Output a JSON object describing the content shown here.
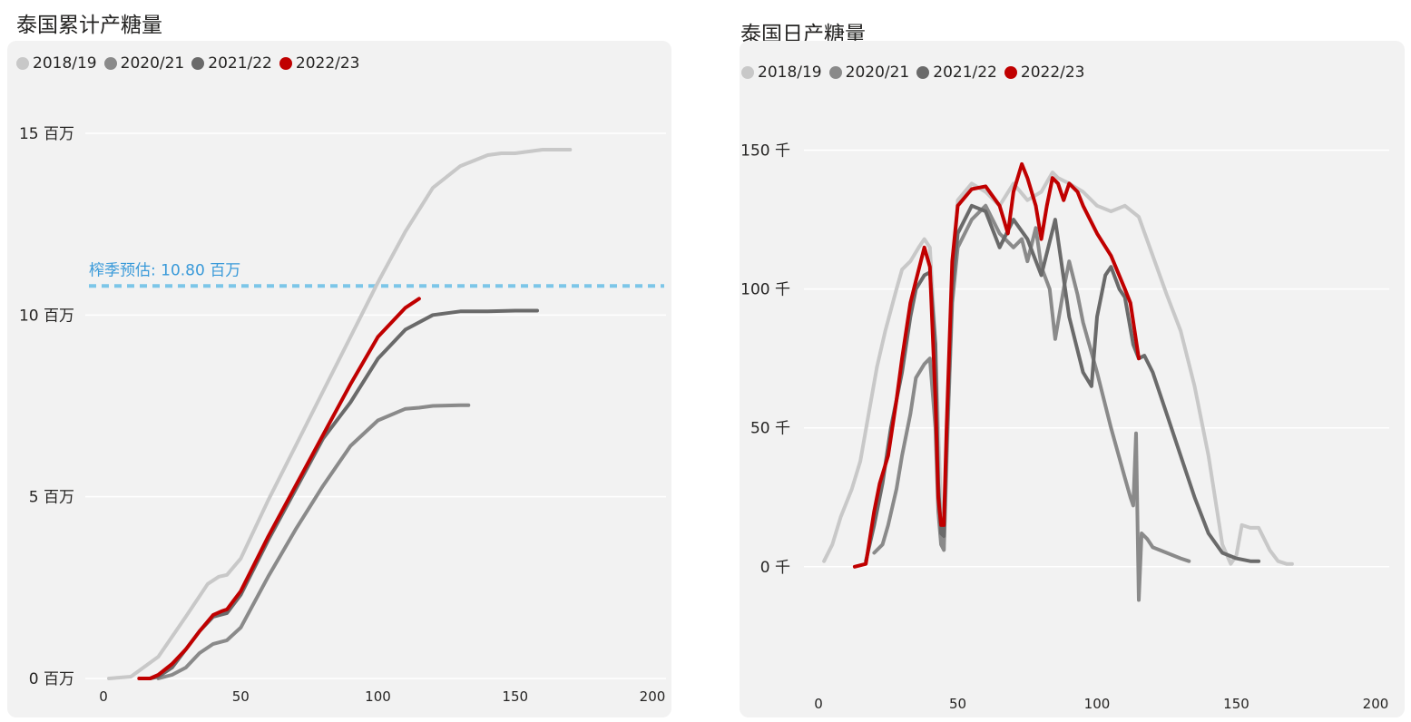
{
  "chart_data": [
    {
      "type": "line",
      "title": "泰国累计产糖量",
      "xlabel": "",
      "ylabel": "",
      "x_ticks": [
        0,
        50,
        100,
        150,
        200
      ],
      "x_tick_labels": [
        "0",
        "50",
        "100",
        "150",
        "200"
      ],
      "xlim": [
        0,
        200
      ],
      "y_ticks": [
        0,
        5,
        10,
        15
      ],
      "y_tick_labels": [
        "0 百万",
        "5 百万",
        "10 百万",
        "15 百万"
      ],
      "ylim": [
        0,
        15
      ],
      "y_unit": "百万",
      "grid": true,
      "legend_position": "top-left",
      "reference_line": {
        "label": "榨季预估: 10.80 百万",
        "value": 10.8,
        "color": "#7cc6e8"
      },
      "series": [
        {
          "name": "2018/19",
          "color": "#c8c8c8",
          "x": [
            2,
            10,
            20,
            30,
            38,
            42,
            45,
            50,
            60,
            70,
            80,
            90,
            100,
            110,
            120,
            130,
            140,
            145,
            150,
            155,
            160,
            170
          ],
          "y": [
            0.0,
            0.05,
            0.6,
            1.7,
            2.6,
            2.8,
            2.85,
            3.3,
            4.9,
            6.4,
            7.9,
            9.4,
            10.9,
            12.3,
            13.5,
            14.1,
            14.4,
            14.45,
            14.45,
            14.5,
            14.55,
            14.55
          ]
        },
        {
          "name": "2020/21",
          "color": "#8a8a8a",
          "x": [
            20,
            25,
            30,
            35,
            40,
            45,
            50,
            60,
            70,
            80,
            90,
            100,
            110,
            115,
            120,
            130,
            133
          ],
          "y": [
            0.0,
            0.1,
            0.3,
            0.7,
            0.95,
            1.05,
            1.4,
            2.8,
            4.1,
            5.3,
            6.4,
            7.1,
            7.42,
            7.45,
            7.5,
            7.52,
            7.52
          ]
        },
        {
          "name": "2021/22",
          "color": "#6a6a6a",
          "x": [
            17,
            20,
            25,
            30,
            35,
            40,
            45,
            50,
            60,
            70,
            80,
            90,
            100,
            110,
            120,
            130,
            140,
            150,
            158
          ],
          "y": [
            0.0,
            0.05,
            0.3,
            0.8,
            1.3,
            1.7,
            1.8,
            2.3,
            3.8,
            5.2,
            6.6,
            7.6,
            8.8,
            9.6,
            10.0,
            10.1,
            10.1,
            10.12,
            10.12
          ]
        },
        {
          "name": "2022/23",
          "color": "#c00000",
          "x": [
            13,
            17,
            20,
            25,
            30,
            35,
            40,
            43,
            45,
            50,
            60,
            70,
            80,
            90,
            100,
            110,
            115
          ],
          "y": [
            0.0,
            0.0,
            0.1,
            0.4,
            0.8,
            1.3,
            1.75,
            1.85,
            1.9,
            2.4,
            3.9,
            5.3,
            6.7,
            8.1,
            9.4,
            10.2,
            10.45
          ]
        }
      ]
    },
    {
      "type": "line",
      "title": "泰国日产糖量",
      "xlabel": "",
      "ylabel": "",
      "x_ticks": [
        0,
        50,
        100,
        150,
        200
      ],
      "x_tick_labels": [
        "0",
        "50",
        "100",
        "150",
        "200"
      ],
      "xlim": [
        0,
        200
      ],
      "y_ticks": [
        0,
        50,
        100,
        150
      ],
      "y_tick_labels": [
        "0 千",
        "50 千",
        "100 千",
        "150 千"
      ],
      "ylim": [
        -20,
        160
      ],
      "y_unit": "千",
      "grid": true,
      "legend_position": "top-left",
      "series": [
        {
          "name": "2018/19",
          "color": "#c8c8c8",
          "x": [
            2,
            5,
            8,
            12,
            15,
            18,
            21,
            24,
            28,
            30,
            33,
            36,
            38,
            40,
            42,
            44,
            45,
            46,
            48,
            50,
            55,
            60,
            65,
            70,
            75,
            80,
            84,
            86,
            90,
            95,
            100,
            105,
            110,
            115,
            120,
            125,
            130,
            135,
            140,
            145,
            148,
            150,
            152,
            155,
            158,
            162,
            165,
            168,
            170
          ],
          "y": [
            2,
            8,
            18,
            28,
            38,
            55,
            72,
            85,
            100,
            107,
            110,
            115,
            118,
            115,
            80,
            20,
            6,
            35,
            100,
            132,
            138,
            135,
            130,
            138,
            132,
            135,
            142,
            140,
            138,
            135,
            130,
            128,
            130,
            126,
            112,
            98,
            85,
            65,
            40,
            8,
            1,
            4,
            15,
            14,
            14,
            6,
            2,
            1,
            1
          ]
        },
        {
          "name": "2020/21",
          "color": "#8a8a8a",
          "x": [
            20,
            23,
            25,
            28,
            30,
            33,
            35,
            38,
            40,
            42,
            43,
            44,
            45,
            46,
            48,
            50,
            55,
            60,
            65,
            70,
            73,
            75,
            78,
            80,
            83,
            85,
            88,
            90,
            93,
            95,
            100,
            105,
            110,
            112,
            113,
            114,
            115,
            116,
            118,
            120,
            125,
            130,
            133
          ],
          "y": [
            5,
            8,
            15,
            28,
            40,
            55,
            68,
            73,
            75,
            50,
            20,
            8,
            6,
            40,
            95,
            115,
            125,
            130,
            120,
            115,
            118,
            110,
            122,
            108,
            100,
            82,
            100,
            110,
            98,
            88,
            70,
            50,
            32,
            25,
            22,
            48,
            -12,
            12,
            10,
            7,
            5,
            3,
            2
          ]
        },
        {
          "name": "2021/22",
          "color": "#6a6a6a",
          "x": [
            17,
            20,
            23,
            26,
            30,
            33,
            35,
            38,
            40,
            42,
            43,
            44,
            45,
            46,
            48,
            50,
            55,
            60,
            65,
            70,
            75,
            80,
            85,
            90,
            95,
            98,
            100,
            103,
            105,
            108,
            110,
            113,
            115,
            117,
            120,
            125,
            130,
            135,
            140,
            145,
            150,
            155,
            158
          ],
          "y": [
            2,
            15,
            30,
            50,
            70,
            90,
            100,
            105,
            106,
            80,
            30,
            12,
            11,
            45,
            100,
            120,
            130,
            128,
            115,
            125,
            118,
            105,
            125,
            90,
            70,
            65,
            90,
            105,
            108,
            100,
            97,
            80,
            75,
            76,
            70,
            55,
            40,
            25,
            12,
            5,
            3,
            2,
            2
          ]
        },
        {
          "name": "2022/23",
          "color": "#c00000",
          "x": [
            13,
            17,
            20,
            22,
            25,
            28,
            30,
            33,
            35,
            38,
            40,
            42,
            43,
            44,
            45,
            46,
            48,
            50,
            55,
            60,
            65,
            68,
            70,
            73,
            75,
            78,
            80,
            82,
            84,
            86,
            88,
            90,
            93,
            95,
            100,
            105,
            110,
            112,
            115
          ],
          "y": [
            0,
            1,
            20,
            30,
            40,
            60,
            75,
            95,
            103,
            115,
            108,
            60,
            25,
            15,
            15,
            50,
            110,
            130,
            136,
            137,
            130,
            120,
            135,
            145,
            140,
            130,
            118,
            130,
            140,
            138,
            132,
            138,
            135,
            130,
            120,
            112,
            100,
            95,
            75
          ]
        }
      ]
    }
  ]
}
